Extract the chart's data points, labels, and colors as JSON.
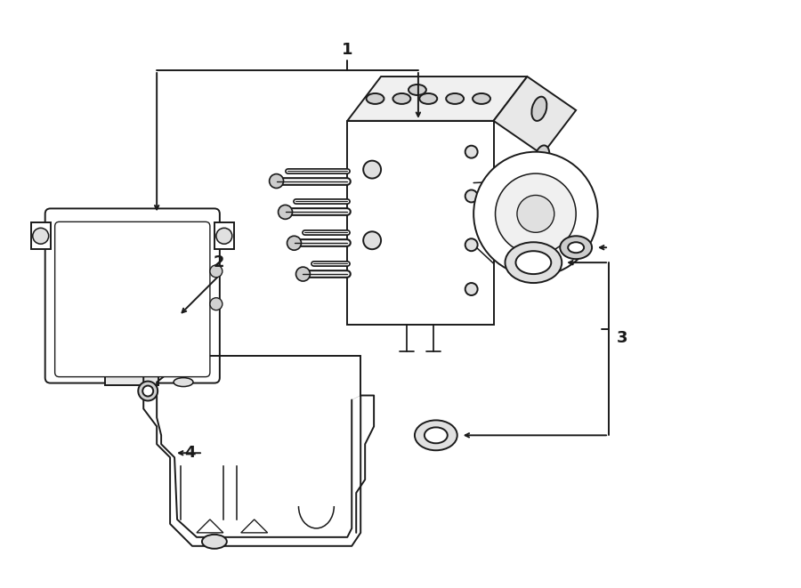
{
  "bg_color": "#ffffff",
  "line_color": "#1a1a1a",
  "lw": 1.4,
  "fig_width": 9.0,
  "fig_height": 6.61,
  "dpi": 100,
  "label_fontsize": 13,
  "label_fontweight": "bold"
}
